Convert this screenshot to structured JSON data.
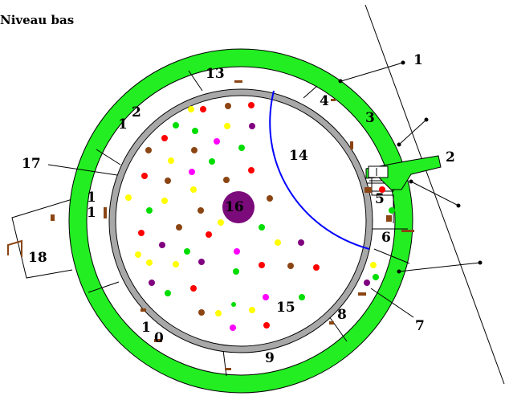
{
  "title": "Niveau bas",
  "labels": {
    "l1_outer": "1",
    "l1_a": "1",
    "l1_b": "1",
    "l1_c": "1",
    "l2_arm": "2",
    "l2_left": "2",
    "l3": "3",
    "l4": "4",
    "l5": "5",
    "l6": "6",
    "l7": "7",
    "l8": "8",
    "l9": "9",
    "l10": "10",
    "l13": "13",
    "l14": "14",
    "l15": "15",
    "l16": "16",
    "l17": "17",
    "l18": "18"
  },
  "colors": {
    "outer_ring": "#22ee22",
    "inner_ring": "#a8a8a8",
    "partition": "#000000",
    "arc": "#0000ff",
    "center_circle": "#7b0a7b",
    "door": "#8b4513",
    "dot_palette": [
      "#ff0000",
      "#ffff00",
      "#00dd00",
      "#8b4513",
      "#800080",
      "#ff00ff"
    ]
  }
}
